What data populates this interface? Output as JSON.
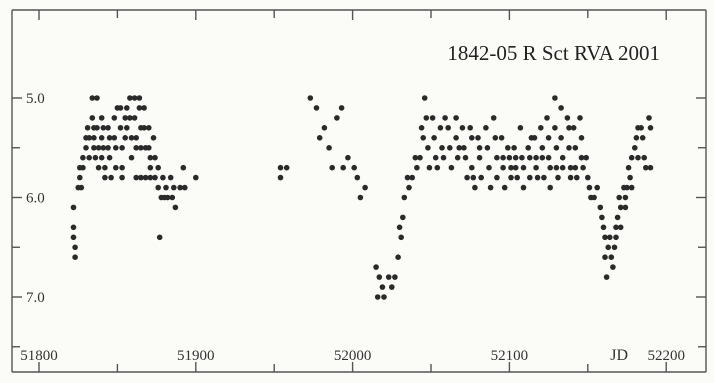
{
  "chart_data": {
    "type": "scatter",
    "title": "1842-05  R Sct  RVA  2001",
    "xlabel": "JD",
    "ylabel": "",
    "xlim": [
      51795,
      52205
    ],
    "ylim": [
      7.5,
      4.6
    ],
    "y_inverted": true,
    "x_ticks": [
      {
        "value": 51800,
        "label": "51800"
      },
      {
        "value": 51900,
        "label": "51900"
      },
      {
        "value": 52000,
        "label": "52000"
      },
      {
        "value": 52100,
        "label": "52100"
      },
      {
        "value": 52200,
        "label": "52200"
      }
    ],
    "y_ticks": [
      {
        "value": 5.0,
        "label": "5.0"
      },
      {
        "value": 6.0,
        "label": "6.0"
      },
      {
        "value": 7.0,
        "label": "7.0"
      }
    ],
    "grid": false,
    "series": [
      {
        "points": [
          [
            51822,
            6.1
          ],
          [
            51822,
            6.3
          ],
          [
            51822,
            6.4
          ],
          [
            51823,
            6.5
          ],
          [
            51823,
            6.6
          ],
          [
            51825,
            5.9
          ],
          [
            51826,
            5.8
          ],
          [
            51826,
            5.7
          ],
          [
            51827,
            5.9
          ],
          [
            51828,
            5.7
          ],
          [
            51828,
            5.6
          ],
          [
            51830,
            5.5
          ],
          [
            51830,
            5.4
          ],
          [
            51831,
            5.3
          ],
          [
            51832,
            5.6
          ],
          [
            51832,
            5.4
          ],
          [
            51834,
            5.0
          ],
          [
            51834,
            5.2
          ],
          [
            51835,
            5.3
          ],
          [
            51835,
            5.4
          ],
          [
            51835,
            5.5
          ],
          [
            51836,
            5.6
          ],
          [
            51837,
            5.0
          ],
          [
            51837,
            5.3
          ],
          [
            51838,
            5.5
          ],
          [
            51838,
            5.7
          ],
          [
            51840,
            5.2
          ],
          [
            51840,
            5.4
          ],
          [
            51840,
            5.6
          ],
          [
            51841,
            5.3
          ],
          [
            51841,
            5.5
          ],
          [
            51842,
            5.7
          ],
          [
            51842,
            5.8
          ],
          [
            51844,
            5.3
          ],
          [
            51844,
            5.5
          ],
          [
            51845,
            5.4
          ],
          [
            51845,
            5.6
          ],
          [
            51846,
            5.8
          ],
          [
            51848,
            5.2
          ],
          [
            51848,
            5.4
          ],
          [
            51849,
            5.5
          ],
          [
            51849,
            5.7
          ],
          [
            51850,
            5.1
          ],
          [
            51852,
            5.1
          ],
          [
            51852,
            5.3
          ],
          [
            51853,
            5.5
          ],
          [
            51853,
            5.7
          ],
          [
            51853,
            5.8
          ],
          [
            51855,
            5.2
          ],
          [
            51855,
            5.4
          ],
          [
            51856,
            5.1
          ],
          [
            51856,
            5.3
          ],
          [
            51858,
            5.0
          ],
          [
            51858,
            5.2
          ],
          [
            51859,
            5.4
          ],
          [
            51859,
            5.6
          ],
          [
            51861,
            5.0
          ],
          [
            51861,
            5.2
          ],
          [
            51862,
            5.4
          ],
          [
            51862,
            5.5
          ],
          [
            51862,
            5.8
          ],
          [
            51864,
            5.0
          ],
          [
            51864,
            5.1
          ],
          [
            51865,
            5.3
          ],
          [
            51865,
            5.5
          ],
          [
            51865,
            5.8
          ],
          [
            51867,
            5.1
          ],
          [
            51867,
            5.3
          ],
          [
            51868,
            5.5
          ],
          [
            51868,
            5.8
          ],
          [
            51870,
            5.3
          ],
          [
            51870,
            5.5
          ],
          [
            51871,
            5.6
          ],
          [
            51871,
            5.7
          ],
          [
            51871,
            5.8
          ],
          [
            51873,
            5.4
          ],
          [
            51874,
            5.6
          ],
          [
            51874,
            5.8
          ],
          [
            51876,
            5.7
          ],
          [
            51876,
            5.9
          ],
          [
            51877,
            6.4
          ],
          [
            51878,
            6.0
          ],
          [
            51879,
            5.8
          ],
          [
            51880,
            6.0
          ],
          [
            51881,
            5.9
          ],
          [
            51882,
            6.0
          ],
          [
            51884,
            5.8
          ],
          [
            51885,
            6.0
          ],
          [
            51886,
            5.9
          ],
          [
            51887,
            6.1
          ],
          [
            51890,
            5.9
          ],
          [
            51892,
            5.7
          ],
          [
            51893,
            5.9
          ],
          [
            51900,
            5.8
          ],
          [
            51954,
            5.8
          ],
          [
            51954,
            5.7
          ],
          [
            51958,
            5.7
          ],
          [
            51973,
            5.0
          ],
          [
            51977,
            5.1
          ],
          [
            51979,
            5.4
          ],
          [
            51982,
            5.3
          ],
          [
            51985,
            5.5
          ],
          [
            51987,
            5.7
          ],
          [
            51990,
            5.2
          ],
          [
            51993,
            5.1
          ],
          [
            51994,
            5.7
          ],
          [
            51997,
            5.6
          ],
          [
            52001,
            5.7
          ],
          [
            52003,
            5.8
          ],
          [
            52005,
            6.0
          ],
          [
            52008,
            5.9
          ],
          [
            52015,
            6.7
          ],
          [
            52016,
            7.0
          ],
          [
            52017,
            6.8
          ],
          [
            52019,
            6.9
          ],
          [
            52020,
            7.0
          ],
          [
            52023,
            6.8
          ],
          [
            52025,
            6.9
          ],
          [
            52027,
            6.8
          ],
          [
            52029,
            6.6
          ],
          [
            52030,
            6.3
          ],
          [
            52031,
            6.4
          ],
          [
            52032,
            6.2
          ],
          [
            52033,
            6.0
          ],
          [
            52035,
            5.8
          ],
          [
            52036,
            5.9
          ],
          [
            52038,
            5.8
          ],
          [
            52040,
            5.6
          ],
          [
            52041,
            5.7
          ],
          [
            52043,
            5.6
          ],
          [
            52044,
            5.3
          ],
          [
            52045,
            5.4
          ],
          [
            52046,
            5.0
          ],
          [
            52047,
            5.2
          ],
          [
            52048,
            5.5
          ],
          [
            52049,
            5.7
          ],
          [
            52051,
            5.2
          ],
          [
            52052,
            5.4
          ],
          [
            52053,
            5.6
          ],
          [
            52054,
            5.7
          ],
          [
            52056,
            5.3
          ],
          [
            52057,
            5.5
          ],
          [
            52058,
            5.6
          ],
          [
            52059,
            5.2
          ],
          [
            52061,
            5.3
          ],
          [
            52062,
            5.5
          ],
          [
            52063,
            5.7
          ],
          [
            52066,
            5.2
          ],
          [
            52066,
            5.4
          ],
          [
            52067,
            5.6
          ],
          [
            52068,
            5.5
          ],
          [
            52070,
            5.3
          ],
          [
            52071,
            5.5
          ],
          [
            52072,
            5.6
          ],
          [
            52073,
            5.8
          ],
          [
            52075,
            5.3
          ],
          [
            52076,
            5.4
          ],
          [
            52076,
            5.7
          ],
          [
            52077,
            5.8
          ],
          [
            52078,
            5.9
          ],
          [
            52080,
            5.4
          ],
          [
            52081,
            5.5
          ],
          [
            52081,
            5.6
          ],
          [
            52082,
            5.8
          ],
          [
            52085,
            5.3
          ],
          [
            52086,
            5.5
          ],
          [
            52087,
            5.7
          ],
          [
            52088,
            5.9
          ],
          [
            52090,
            5.2
          ],
          [
            52091,
            5.4
          ],
          [
            52092,
            5.6
          ],
          [
            52092,
            5.8
          ],
          [
            52095,
            5.4
          ],
          [
            52096,
            5.6
          ],
          [
            52096,
            5.7
          ],
          [
            52097,
            5.9
          ],
          [
            52099,
            5.5
          ],
          [
            52100,
            5.6
          ],
          [
            52101,
            5.7
          ],
          [
            52101,
            5.8
          ],
          [
            52103,
            5.5
          ],
          [
            52104,
            5.7
          ],
          [
            52104,
            5.6
          ],
          [
            52105,
            5.8
          ],
          [
            52107,
            5.3
          ],
          [
            52108,
            5.6
          ],
          [
            52109,
            5.7
          ],
          [
            52109,
            5.9
          ],
          [
            52112,
            5.5
          ],
          [
            52113,
            5.6
          ],
          [
            52113,
            5.8
          ],
          [
            52114,
            5.4
          ],
          [
            52116,
            5.4
          ],
          [
            52117,
            5.6
          ],
          [
            52117,
            5.7
          ],
          [
            52118,
            5.8
          ],
          [
            52120,
            5.3
          ],
          [
            52121,
            5.5
          ],
          [
            52121,
            5.6
          ],
          [
            52122,
            5.8
          ],
          [
            52124,
            5.2
          ],
          [
            52125,
            5.4
          ],
          [
            52125,
            5.6
          ],
          [
            52126,
            5.7
          ],
          [
            52126,
            5.9
          ],
          [
            52129,
            5.0
          ],
          [
            52129,
            5.3
          ],
          [
            52130,
            5.5
          ],
          [
            52130,
            5.7
          ],
          [
            52131,
            5.8
          ],
          [
            52133,
            5.1
          ],
          [
            52133,
            5.4
          ],
          [
            52134,
            5.6
          ],
          [
            52134,
            5.7
          ],
          [
            52137,
            5.2
          ],
          [
            52138,
            5.3
          ],
          [
            52138,
            5.5
          ],
          [
            52139,
            5.7
          ],
          [
            52139,
            5.8
          ],
          [
            52141,
            5.3
          ],
          [
            52142,
            5.5
          ],
          [
            52142,
            5.7
          ],
          [
            52143,
            5.8
          ],
          [
            52145,
            5.2
          ],
          [
            52146,
            5.4
          ],
          [
            52146,
            5.6
          ],
          [
            52147,
            5.7
          ],
          [
            52149,
            5.6
          ],
          [
            52150,
            5.8
          ],
          [
            52151,
            5.9
          ],
          [
            52152,
            6.0
          ],
          [
            52154,
            6.0
          ],
          [
            52156,
            5.9
          ],
          [
            52158,
            6.1
          ],
          [
            52159,
            6.2
          ],
          [
            52160,
            6.3
          ],
          [
            52161,
            6.4
          ],
          [
            52161,
            6.6
          ],
          [
            52162,
            6.8
          ],
          [
            52163,
            6.5
          ],
          [
            52164,
            6.4
          ],
          [
            52165,
            6.6
          ],
          [
            52166,
            6.7
          ],
          [
            52167,
            6.5
          ],
          [
            52168,
            6.3
          ],
          [
            52168,
            6.4
          ],
          [
            52169,
            6.2
          ],
          [
            52170,
            6.0
          ],
          [
            52171,
            6.1
          ],
          [
            52171,
            6.3
          ],
          [
            52173,
            5.9
          ],
          [
            52174,
            6.0
          ],
          [
            52174,
            6.1
          ],
          [
            52175,
            5.9
          ],
          [
            52176,
            5.7
          ],
          [
            52177,
            5.8
          ],
          [
            52178,
            5.6
          ],
          [
            52178,
            5.9
          ],
          [
            52180,
            5.5
          ],
          [
            52181,
            5.4
          ],
          [
            52182,
            5.3
          ],
          [
            52182,
            5.6
          ],
          [
            52184,
            5.3
          ],
          [
            52185,
            5.4
          ],
          [
            52186,
            5.6
          ],
          [
            52187,
            5.7
          ],
          [
            52189,
            5.2
          ],
          [
            52190,
            5.3
          ],
          [
            52190,
            5.7
          ]
        ]
      }
    ]
  }
}
